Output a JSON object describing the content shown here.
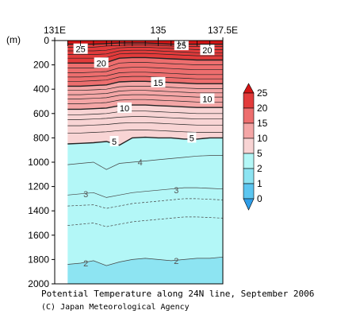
{
  "chart_data": {
    "type": "contour-section",
    "title": "Potential Temperature along 24N line, September 2006",
    "credit": "(C) Japan Meteorological Agency",
    "y_unit_label": "(m)",
    "x_range": [
      131,
      137.5
    ],
    "y_range": [
      0,
      2000
    ],
    "x_ticks": [
      {
        "value": 131,
        "label": "131E"
      },
      {
        "value": 135,
        "label": "135"
      },
      {
        "value": 137.5,
        "label": "137.5E"
      }
    ],
    "station_longitudes": [
      131.5,
      132.0,
      132.5,
      133.0,
      133.2,
      133.5,
      133.7,
      134.0,
      134.5,
      135.0,
      135.5,
      135.8,
      136.0,
      136.5,
      137.0
    ],
    "y_ticks": [
      {
        "value": 0,
        "label": "0"
      },
      {
        "value": 200,
        "label": "200"
      },
      {
        "value": 400,
        "label": "400"
      },
      {
        "value": 600,
        "label": "600"
      },
      {
        "value": 800,
        "label": "800"
      },
      {
        "value": 1000,
        "label": "1000"
      },
      {
        "value": 1200,
        "label": "1200"
      },
      {
        "value": 1400,
        "label": "1400"
      },
      {
        "value": 1600,
        "label": "1600"
      },
      {
        "value": 1800,
        "label": "1800"
      },
      {
        "value": 2000,
        "label": "2000"
      }
    ],
    "colorbar": {
      "levels": [
        {
          "value": 0,
          "label": "0"
        },
        {
          "value": 1,
          "label": "1"
        },
        {
          "value": 2,
          "label": "2"
        },
        {
          "value": 5,
          "label": "5"
        },
        {
          "value": 10,
          "label": "10"
        },
        {
          "value": 15,
          "label": "15"
        },
        {
          "value": 20,
          "label": "20"
        },
        {
          "value": 25,
          "label": "25"
        }
      ],
      "colors": [
        "#2f9ee8",
        "#5cc6f0",
        "#8de4f2",
        "#b3f7f7",
        "#f8d4d4",
        "#f4a6a6",
        "#ed6e6e",
        "#e23b3b",
        "#d41414"
      ]
    },
    "x_samples": [
      131.5,
      132.0,
      132.5,
      133.0,
      133.5,
      134.0,
      134.5,
      135.0,
      135.5,
      136.0,
      136.5,
      137.0,
      137.5
    ],
    "contours": [
      {
        "temp": 25,
        "labeled": true,
        "label_x": 132.1,
        "depth": [
          30,
          30,
          30,
          25,
          20,
          20,
          20,
          25,
          30,
          30,
          30,
          30,
          30
        ]
      },
      {
        "temp": 24,
        "labeled": false,
        "depth": [
          55,
          55,
          55,
          45,
          40,
          35,
          35,
          40,
          45,
          50,
          50,
          50,
          50
        ]
      },
      {
        "temp": 23,
        "labeled": false,
        "depth": [
          85,
          85,
          85,
          80,
          60,
          55,
          55,
          60,
          65,
          70,
          75,
          75,
          75
        ]
      },
      {
        "temp": 22,
        "labeled": false,
        "depth": [
          115,
          115,
          115,
          110,
          85,
          80,
          80,
          85,
          90,
          95,
          100,
          100,
          100
        ]
      },
      {
        "temp": 21,
        "labeled": false,
        "depth": [
          145,
          145,
          145,
          140,
          110,
          105,
          105,
          110,
          115,
          120,
          125,
          125,
          125
        ]
      },
      {
        "temp": 20,
        "labeled": true,
        "label_x": 132.8,
        "depth": [
          185,
          185,
          185,
          180,
          145,
          140,
          140,
          145,
          150,
          155,
          160,
          160,
          160
        ]
      },
      {
        "temp": 19,
        "labeled": false,
        "depth": [
          225,
          225,
          225,
          220,
          185,
          180,
          180,
          185,
          190,
          195,
          200,
          200,
          200
        ]
      },
      {
        "temp": 18,
        "labeled": false,
        "depth": [
          265,
          265,
          260,
          255,
          225,
          220,
          220,
          225,
          230,
          235,
          240,
          240,
          240
        ]
      },
      {
        "temp": 17,
        "labeled": false,
        "depth": [
          300,
          300,
          295,
          290,
          265,
          260,
          260,
          265,
          270,
          275,
          280,
          280,
          280
        ]
      },
      {
        "temp": 16,
        "labeled": false,
        "depth": [
          335,
          335,
          330,
          325,
          300,
          295,
          295,
          300,
          305,
          310,
          315,
          315,
          315
        ]
      },
      {
        "temp": 15,
        "labeled": true,
        "label_x": 135.0,
        "depth": [
          375,
          375,
          370,
          365,
          340,
          335,
          335,
          340,
          345,
          350,
          355,
          355,
          355
        ]
      },
      {
        "temp": 14,
        "labeled": false,
        "depth": [
          410,
          410,
          405,
          400,
          380,
          375,
          375,
          380,
          385,
          390,
          395,
          395,
          395
        ]
      },
      {
        "temp": 13,
        "labeled": false,
        "depth": [
          445,
          445,
          440,
          435,
          415,
          410,
          410,
          415,
          420,
          425,
          430,
          430,
          430
        ]
      },
      {
        "temp": 12,
        "labeled": false,
        "depth": [
          480,
          480,
          475,
          470,
          450,
          445,
          445,
          450,
          455,
          460,
          465,
          465,
          465
        ]
      },
      {
        "temp": 11,
        "labeled": false,
        "depth": [
          520,
          520,
          515,
          510,
          490,
          485,
          485,
          490,
          495,
          500,
          505,
          505,
          505
        ]
      },
      {
        "temp": 10,
        "labeled": true,
        "label_x": 133.8,
        "depth": [
          565,
          565,
          560,
          555,
          535,
          530,
          530,
          535,
          540,
          545,
          550,
          550,
          550
        ]
      },
      {
        "temp": 9,
        "labeled": false,
        "depth": [
          610,
          610,
          605,
          600,
          585,
          580,
          580,
          585,
          590,
          595,
          600,
          600,
          600
        ]
      },
      {
        "temp": 8,
        "labeled": false,
        "depth": [
          650,
          650,
          645,
          640,
          630,
          625,
          625,
          630,
          635,
          640,
          645,
          645,
          645
        ]
      },
      {
        "temp": 7,
        "labeled": false,
        "depth": [
          700,
          700,
          695,
          690,
          680,
          675,
          675,
          680,
          685,
          690,
          695,
          695,
          695
        ]
      },
      {
        "temp": 6,
        "labeled": false,
        "depth": [
          760,
          760,
          755,
          750,
          740,
          735,
          735,
          740,
          745,
          750,
          755,
          755,
          755
        ]
      },
      {
        "temp": 5,
        "labeled": true,
        "label_x": 133.3,
        "depth": [
          850,
          845,
          840,
          830,
          860,
          800,
          795,
          800,
          800,
          810,
          810,
          800,
          800
        ]
      },
      {
        "temp": 4,
        "labeled": true,
        "label_x": 134.3,
        "depth": [
          1020,
          1010,
          1000,
          1060,
          1010,
          1000,
          990,
          980,
          970,
          960,
          950,
          945,
          945
        ]
      },
      {
        "temp": 3,
        "labeled": true,
        "label_x": 132.2,
        "depth": [
          1270,
          1260,
          1250,
          1290,
          1270,
          1250,
          1240,
          1230,
          1220,
          1210,
          1210,
          1215,
          1220
        ]
      },
      {
        "temp": 2.5,
        "labeled": false,
        "depth": [
          1360,
          1355,
          1350,
          1380,
          1360,
          1340,
          1330,
          1320,
          1310,
          1300,
          1300,
          1305,
          1310
        ]
      },
      {
        "temp": 2.2,
        "labeled": false,
        "depth": [
          1520,
          1510,
          1500,
          1530,
          1510,
          1490,
          1480,
          1470,
          1460,
          1450,
          1450,
          1455,
          1460
        ]
      },
      {
        "temp": 2,
        "labeled": true,
        "label_x": 132.5,
        "depth": [
          1840,
          1830,
          1810,
          1850,
          1820,
          1800,
          1790,
          1800,
          1810,
          1800,
          1790,
          1790,
          1780
        ]
      }
    ],
    "contour_labels": [
      {
        "text": "25",
        "x": 132.0,
        "depth": 70
      },
      {
        "text": "25",
        "x": 135.9,
        "depth": 40
      },
      {
        "text": "20",
        "x": 132.8,
        "depth": 185
      },
      {
        "text": "20",
        "x": 136.9,
        "depth": 80
      },
      {
        "text": "15",
        "x": 135.0,
        "depth": 345
      },
      {
        "text": "10",
        "x": 133.7,
        "depth": 555
      },
      {
        "text": "10",
        "x": 136.9,
        "depth": 480
      },
      {
        "text": "5",
        "x": 133.3,
        "depth": 830
      },
      {
        "text": "5",
        "x": 136.3,
        "depth": 800
      },
      {
        "text": "4",
        "x": 134.3,
        "depth": 1000
      },
      {
        "text": "3",
        "x": 132.2,
        "depth": 1260
      },
      {
        "text": "3",
        "x": 135.7,
        "depth": 1230
      },
      {
        "text": "2",
        "x": 132.2,
        "depth": 1830
      },
      {
        "text": "2",
        "x": 135.7,
        "depth": 1810
      }
    ],
    "grid": false,
    "legend": "right-colorbar"
  }
}
